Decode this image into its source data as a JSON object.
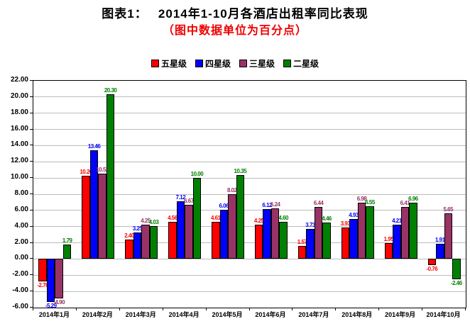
{
  "title": "图表1：　 2014年1-10月各酒店出租率同比表现",
  "subtitle": "（图中数据单位为百分点）",
  "colors": {
    "title": "#000000",
    "subtitle": "#ee0000",
    "axis": "#000000",
    "gridline": "#bcbcbc",
    "background": "#ffffff"
  },
  "chart_data": {
    "type": "bar",
    "title": "图表1：　 2014年1-10月各酒店出租率同比表现",
    "subtitle": "（图中数据单位为百分点）",
    "unit_note": "图中数据单位为百分点",
    "categories": [
      "2014年1月",
      "2014年2月",
      "2014年3月",
      "2014年4月",
      "2014年5月",
      "2014年6月",
      "2014年7月",
      "2014年8月",
      "2014年9月",
      "2014年10月"
    ],
    "series": [
      {
        "name": "五星级",
        "slug": "five-star",
        "color": "#ff0000",
        "values": [
          -2.76,
          10.26,
          2.4,
          4.56,
          4.61,
          4.25,
          1.57,
          3.93,
          1.95,
          -0.76
        ]
      },
      {
        "name": "四星级",
        "slug": "four-star",
        "color": "#0000ff",
        "values": [
          -5.29,
          13.46,
          3.25,
          7.12,
          6.06,
          6.12,
          3.73,
          4.93,
          4.21,
          1.91
        ]
      },
      {
        "name": "三星级",
        "slug": "three-star",
        "color": "#993366",
        "values": [
          -4.9,
          10.52,
          4.25,
          6.67,
          8.02,
          6.24,
          6.44,
          6.98,
          6.41,
          5.65
        ]
      },
      {
        "name": "二星级",
        "slug": "two-star",
        "color": "#008000",
        "values": [
          1.79,
          20.3,
          4.03,
          10.0,
          10.35,
          4.6,
          4.46,
          6.55,
          6.96,
          -2.46
        ]
      }
    ],
    "ylim": [
      -6,
      22
    ],
    "ytick_step": 2,
    "ytick_labels": [
      "22.00",
      "20.00",
      "18.00",
      "16.00",
      "14.00",
      "12.00",
      "10.00",
      "8.00",
      "6.00",
      "4.00",
      "2.00",
      "0.00",
      "-2.00",
      "-4.00",
      "-6.00"
    ],
    "grid": true,
    "data_labels": true,
    "legend_position": "top"
  }
}
